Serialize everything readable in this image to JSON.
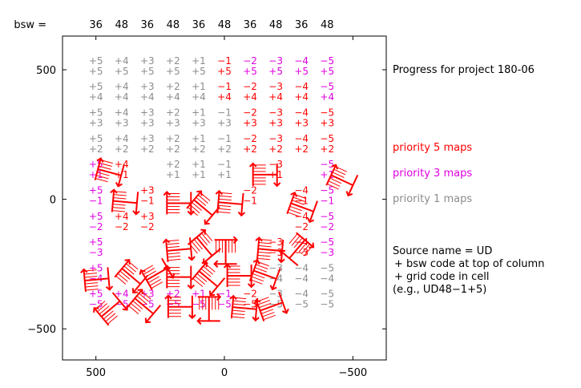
{
  "chart_data": {
    "type": "table",
    "title": "Progress for project 180-06",
    "bsw_label": "bsw =",
    "bsw_codes": [
      "36",
      "48",
      "36",
      "48",
      "36",
      "48",
      "36",
      "48",
      "36",
      "48"
    ],
    "col_x": [
      500,
      400,
      300,
      200,
      100,
      0,
      -100,
      -200,
      -300,
      -400
    ],
    "col_codes": [
      "+5",
      "+4",
      "+3",
      "+2",
      "+1",
      "−1",
      "−2",
      "−3",
      "−4",
      "−5"
    ],
    "row_y": [
      550,
      450,
      350,
      250,
      150,
      50,
      -50,
      -150,
      -250,
      -350,
      -450,
      -550
    ],
    "row_codes": [
      "+5",
      "+4",
      "+3",
      "+2",
      "+1",
      "−1",
      "−2",
      "−3",
      "−4",
      "−5"
    ],
    "grid_rows_y": [
      550,
      450,
      350,
      250,
      150,
      50,
      -50,
      -150,
      -250,
      -350,
      -450,
      -550
    ],
    "xlim": [
      630,
      -630
    ],
    "ylim": [
      -620,
      630
    ],
    "xticks": [
      500,
      0,
      -500
    ],
    "xtick_labels": [
      "500",
      "0",
      "−500"
    ],
    "yticks": [
      500,
      0,
      -500
    ],
    "ytick_labels": [
      "500",
      "0",
      "−500"
    ],
    "priority_grid": [
      [
        1,
        1,
        1,
        1,
        1,
        5,
        3,
        3,
        3,
        3
      ],
      [
        1,
        1,
        1,
        1,
        1,
        5,
        5,
        5,
        5,
        3
      ],
      [
        1,
        1,
        1,
        1,
        1,
        1,
        5,
        5,
        5,
        5
      ],
      [
        1,
        1,
        1,
        1,
        1,
        1,
        5,
        5,
        5,
        5
      ],
      [
        3,
        5,
        0,
        1,
        1,
        1,
        0,
        5,
        0,
        3
      ],
      [
        3,
        0,
        5,
        0,
        0,
        0,
        5,
        0,
        5,
        3
      ],
      [
        3,
        5,
        5,
        0,
        0,
        0,
        0,
        0,
        5,
        3
      ],
      [
        3,
        0,
        0,
        0,
        0,
        0,
        0,
        5,
        5,
        3
      ],
      [
        3,
        0,
        0,
        0,
        0,
        0,
        0,
        1,
        1,
        1
      ],
      [
        3,
        3,
        3,
        3,
        3,
        3,
        5,
        1,
        1,
        1
      ]
    ],
    "maps_done": [
      {
        "x": 450,
        "y": 105,
        "rot": 15
      },
      {
        "x": 390,
        "y": -10,
        "rot": 5
      },
      {
        "x": 180,
        "y": -15,
        "rot": 0
      },
      {
        "x": 85,
        "y": -30,
        "rot": 40
      },
      {
        "x": -20,
        "y": -15,
        "rot": 5
      },
      {
        "x": -300,
        "y": -30,
        "rot": 20
      },
      {
        "x": -155,
        "y": 95,
        "rot": 0
      },
      {
        "x": -455,
        "y": 75,
        "rot": 25
      },
      {
        "x": 180,
        "y": -195,
        "rot": -5
      },
      {
        "x": 80,
        "y": -180,
        "rot": 50
      },
      {
        "x": -5,
        "y": -200,
        "rot": 90
      },
      {
        "x": -175,
        "y": -195,
        "rot": 5
      },
      {
        "x": -285,
        "y": -190,
        "rot": 130
      },
      {
        "x": 500,
        "y": -310,
        "rot": -5
      },
      {
        "x": 365,
        "y": -295,
        "rot": 40
      },
      {
        "x": 265,
        "y": -290,
        "rot": -30
      },
      {
        "x": 180,
        "y": -300,
        "rot": 0
      },
      {
        "x": 65,
        "y": -305,
        "rot": 40
      },
      {
        "x": -55,
        "y": -295,
        "rot": 0
      },
      {
        "x": -155,
        "y": -290,
        "rot": 20
      },
      {
        "x": 445,
        "y": -425,
        "rot": -40
      },
      {
        "x": 315,
        "y": -410,
        "rot": 40
      },
      {
        "x": 175,
        "y": -415,
        "rot": 0
      },
      {
        "x": 60,
        "y": -420,
        "rot": 90
      },
      {
        "x": -75,
        "y": -420,
        "rot": 5
      },
      {
        "x": -180,
        "y": -415,
        "rot": -20
      }
    ],
    "legend": [
      {
        "label": "priority 5 maps",
        "color": "#ff0000"
      },
      {
        "label": "priority 3 maps",
        "color": "#e000e0"
      },
      {
        "label": "priority 1 maps",
        "color": "#8c8c8c"
      }
    ],
    "notes": [
      "Source name = UD",
      "+ bsw code at top of column",
      "+ grid code in cell",
      "(e.g., UD48−1+5)"
    ],
    "colors": {
      "p5": "#ff0000",
      "p3": "#e000e0",
      "p1": "#8c8c8c",
      "done": "#ff0000",
      "axis": "#000000"
    }
  }
}
